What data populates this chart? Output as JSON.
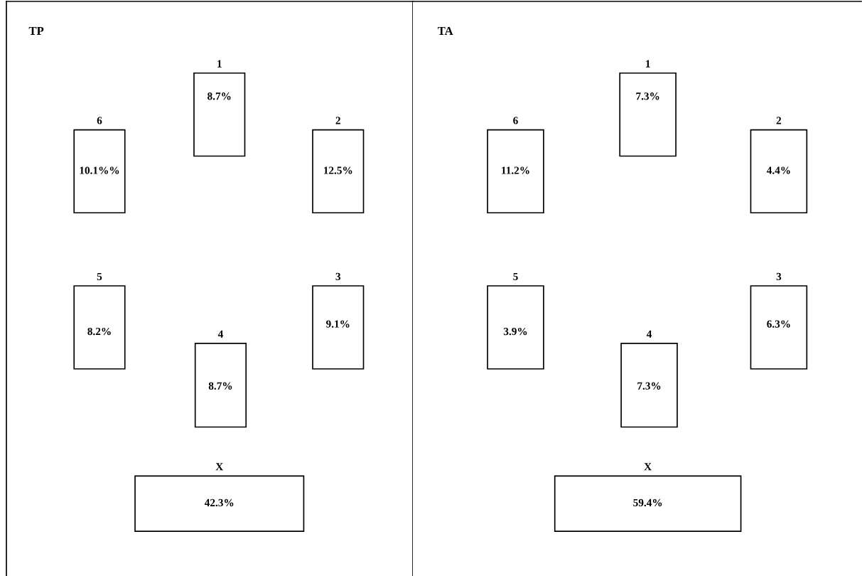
{
  "chart_data": [
    {
      "type": "other",
      "title": "TP",
      "categories": [
        "1",
        "2",
        "3",
        "4",
        "5",
        "6",
        "X"
      ],
      "values": [
        8.7,
        12.5,
        9.1,
        8.7,
        8.2,
        10.1,
        42.3
      ],
      "value_labels": [
        "8.7%",
        "12.5%",
        "9.1%",
        "8.7%",
        "8.2%",
        "10.1%%",
        "42.3%"
      ]
    },
    {
      "type": "other",
      "title": "TA",
      "categories": [
        "1",
        "2",
        "3",
        "4",
        "5",
        "6",
        "X"
      ],
      "values": [
        7.3,
        4.4,
        6.3,
        7.3,
        3.9,
        11.2,
        59.4
      ],
      "value_labels": [
        "7.3%",
        "4.4%",
        "6.3%",
        "7.3%",
        "3.9%",
        "11.2%",
        "59.4%"
      ]
    }
  ]
}
